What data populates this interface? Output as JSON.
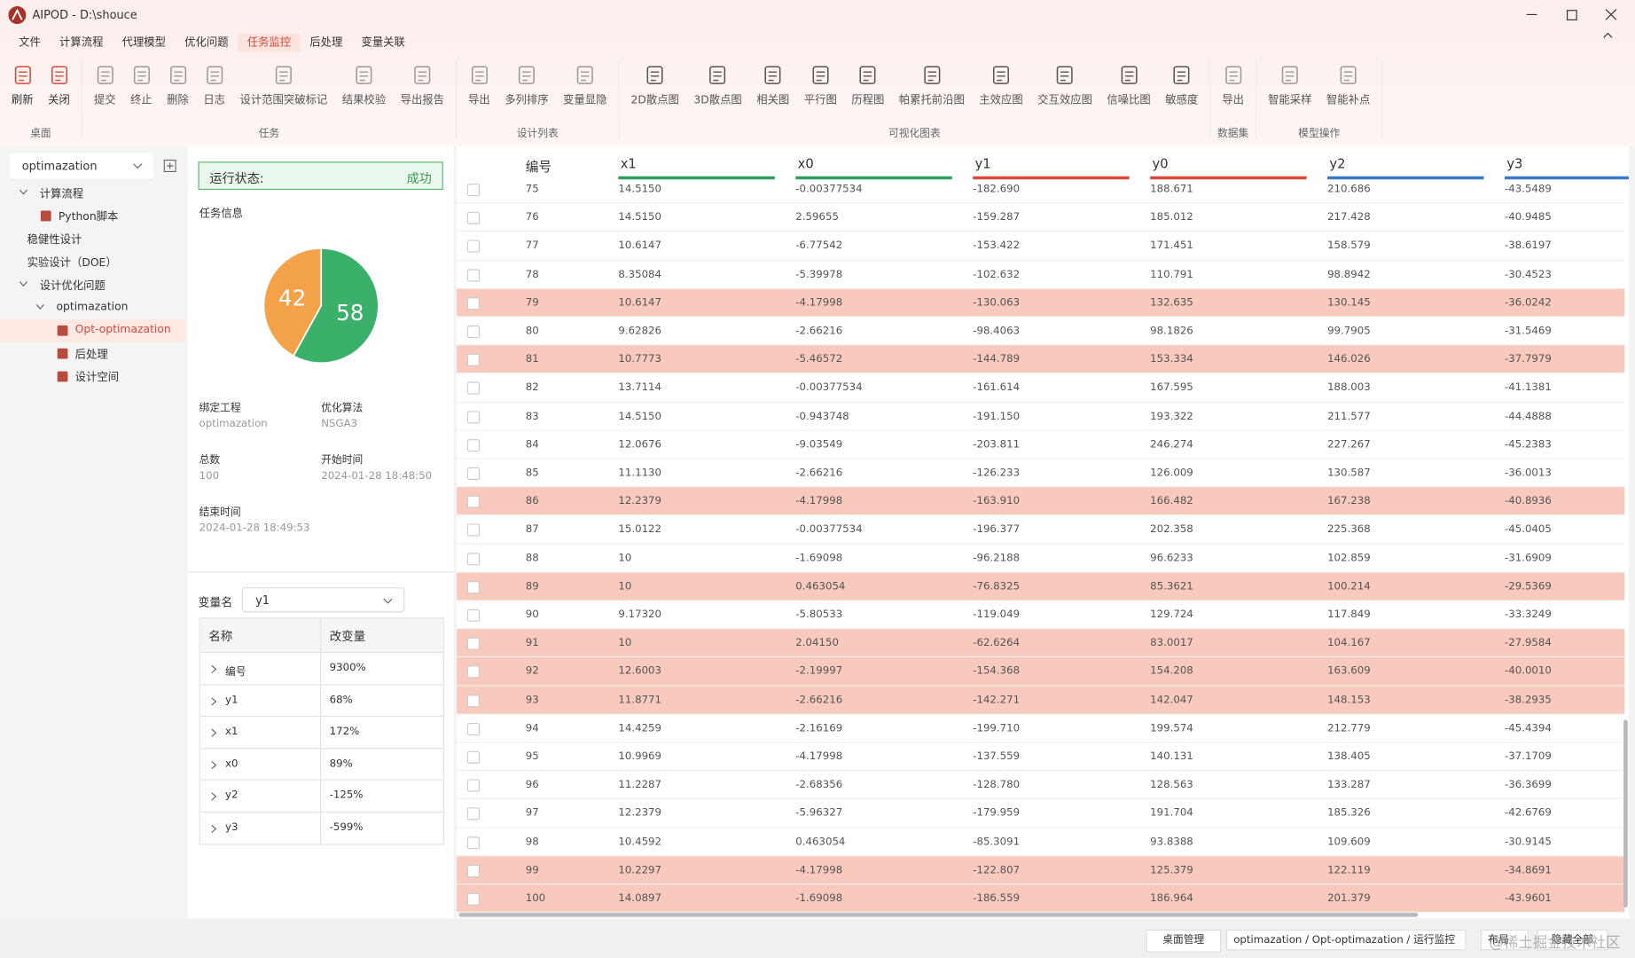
{
  "window": {
    "title": "AIPOD - D:\\shouce"
  },
  "menu": {
    "items": [
      "文件",
      "计算流程",
      "代理模型",
      "优化问题",
      "任务监控",
      "后处理",
      "变量关联"
    ],
    "active": 4
  },
  "toolbar": {
    "groups": [
      {
        "label": "桌面",
        "buttons": [
          "刷新",
          "关闭"
        ]
      },
      {
        "label": "任务",
        "buttons": [
          "提交",
          "终止",
          "删除",
          "日志",
          "设计范围突破标记",
          "结果校验",
          "导出报告"
        ]
      },
      {
        "label": "设计列表",
        "buttons": [
          "导出",
          "多列排序",
          "变量显隐"
        ]
      },
      {
        "label": "可视化图表",
        "buttons": [
          "2D散点图",
          "3D散点图",
          "相关图",
          "平行图",
          "历程图",
          "帕累托前沿图",
          "主效应图",
          "交互效应图",
          "信噪比图",
          "敏感度"
        ]
      },
      {
        "label": "数据集",
        "buttons": [
          "导出"
        ]
      },
      {
        "label": "模型操作",
        "buttons": [
          "智能采样",
          "智能补点"
        ]
      }
    ]
  },
  "sidebar": {
    "project": "optimazation",
    "tree": [
      {
        "label": "计算流程",
        "children": [
          {
            "label": "Python脚本"
          }
        ]
      },
      {
        "label": "稳健性设计"
      },
      {
        "label": "实验设计（DOE）"
      },
      {
        "label": "设计优化问题",
        "children": [
          {
            "label": "optimazation",
            "children": [
              {
                "label": "Opt-optimazation",
                "active": true
              },
              {
                "label": "后处理"
              },
              {
                "label": "设计空间"
              }
            ]
          }
        ]
      }
    ]
  },
  "status": {
    "label": "运行状态:",
    "value": "成功"
  },
  "task_info": {
    "title": "任务信息",
    "pie": {
      "values": [
        42,
        58
      ],
      "colors": [
        "#f4a24a",
        "#3bb06a"
      ]
    },
    "fields": [
      {
        "label": "绑定工程",
        "value": "optimazation"
      },
      {
        "label": "优化算法",
        "value": "NSGA3"
      },
      {
        "label": "总数",
        "value": "100"
      },
      {
        "label": "开始时间",
        "value": "2024-01-28 18:48:50"
      },
      {
        "label": "结束时间",
        "value": "2024-01-28 18:49:53"
      }
    ]
  },
  "variables": {
    "label": "变量名",
    "selected": "y1",
    "table": {
      "headers": [
        "名称",
        "改变量"
      ],
      "rows": [
        [
          "编号",
          "9300%"
        ],
        [
          "y1",
          "68%"
        ],
        [
          "x1",
          "172%"
        ],
        [
          "x0",
          "89%"
        ],
        [
          "y2",
          "-125%"
        ],
        [
          "y3",
          "-599%"
        ]
      ]
    }
  },
  "results": {
    "columns": [
      {
        "name": "编号"
      },
      {
        "name": "x1",
        "color": "#2e9d5a"
      },
      {
        "name": "x0",
        "color": "#2e9d5a"
      },
      {
        "name": "y1",
        "color": "#d9483b"
      },
      {
        "name": "y0",
        "color": "#d9483b"
      },
      {
        "name": "y2",
        "color": "#3a78c9"
      },
      {
        "name": "y3",
        "color": "#3a78c9"
      }
    ],
    "highlight_color": "#f8c9bd",
    "rows": [
      {
        "cells": [
          "75",
          "14.5150",
          "-0.00377534",
          "-182.690",
          "188.671",
          "210.686",
          "-43.5489"
        ]
      },
      {
        "cells": [
          "76",
          "14.5150",
          "2.59655",
          "-159.287",
          "185.012",
          "217.428",
          "-40.9485"
        ]
      },
      {
        "cells": [
          "77",
          "10.6147",
          "-6.77542",
          "-153.422",
          "171.451",
          "158.579",
          "-38.6197"
        ]
      },
      {
        "cells": [
          "78",
          "8.35084",
          "-5.39978",
          "-102.632",
          "110.791",
          "98.8942",
          "-30.4523"
        ]
      },
      {
        "cells": [
          "79",
          "10.6147",
          "-4.17998",
          "-130.063",
          "132.635",
          "130.145",
          "-36.0242"
        ],
        "highlight": true
      },
      {
        "cells": [
          "80",
          "9.62826",
          "-2.66216",
          "-98.4063",
          "98.1826",
          "99.7905",
          "-31.5469"
        ]
      },
      {
        "cells": [
          "81",
          "10.7773",
          "-5.46572",
          "-144.789",
          "153.334",
          "146.026",
          "-37.7979"
        ],
        "highlight": true
      },
      {
        "cells": [
          "82",
          "13.7114",
          "-0.00377534",
          "-161.614",
          "167.595",
          "188.003",
          "-41.1381"
        ]
      },
      {
        "cells": [
          "83",
          "14.5150",
          "-0.943748",
          "-191.150",
          "193.322",
          "211.577",
          "-44.4888"
        ]
      },
      {
        "cells": [
          "84",
          "12.0676",
          "-9.03549",
          "-203.811",
          "246.274",
          "227.267",
          "-45.2383"
        ]
      },
      {
        "cells": [
          "85",
          "11.1130",
          "-2.66216",
          "-126.233",
          "126.009",
          "130.587",
          "-36.0013"
        ]
      },
      {
        "cells": [
          "86",
          "12.2379",
          "-4.17998",
          "-163.910",
          "166.482",
          "167.238",
          "-40.8936"
        ],
        "highlight": true
      },
      {
        "cells": [
          "87",
          "15.0122",
          "-0.00377534",
          "-196.377",
          "202.358",
          "225.368",
          "-45.0405"
        ]
      },
      {
        "cells": [
          "88",
          "10",
          "-1.69098",
          "-96.2188",
          "96.6233",
          "102.859",
          "-31.6909"
        ]
      },
      {
        "cells": [
          "89",
          "10",
          "0.463054",
          "-76.8325",
          "85.3621",
          "100.214",
          "-29.5369"
        ],
        "highlight": true
      },
      {
        "cells": [
          "90",
          "9.17320",
          "-5.80533",
          "-119.049",
          "129.724",
          "117.849",
          "-33.3249"
        ]
      },
      {
        "cells": [
          "91",
          "10",
          "2.04150",
          "-62.6264",
          "83.0017",
          "104.167",
          "-27.9584"
        ],
        "highlight": true
      },
      {
        "cells": [
          "92",
          "12.6003",
          "-2.19997",
          "-154.368",
          "154.208",
          "163.609",
          "-40.0010"
        ],
        "highlight": true
      },
      {
        "cells": [
          "93",
          "11.8771",
          "-2.66216",
          "-142.271",
          "142.047",
          "148.153",
          "-38.2935"
        ],
        "highlight": true
      },
      {
        "cells": [
          "94",
          "14.4259",
          "-2.16169",
          "-199.710",
          "199.574",
          "212.779",
          "-45.4394"
        ]
      },
      {
        "cells": [
          "95",
          "10.9969",
          "-4.17998",
          "-137.559",
          "140.131",
          "138.405",
          "-37.1709"
        ]
      },
      {
        "cells": [
          "96",
          "11.2287",
          "-2.68356",
          "-128.780",
          "128.563",
          "133.287",
          "-36.3699"
        ]
      },
      {
        "cells": [
          "97",
          "12.2379",
          "-5.96327",
          "-179.959",
          "191.704",
          "185.326",
          "-42.6769"
        ]
      },
      {
        "cells": [
          "98",
          "10.4592",
          "0.463054",
          "-85.3091",
          "93.8388",
          "109.609",
          "-30.9145"
        ]
      },
      {
        "cells": [
          "99",
          "10.2297",
          "-4.17998",
          "-122.807",
          "125.379",
          "122.119",
          "-34.8691"
        ],
        "highlight": true
      },
      {
        "cells": [
          "100",
          "14.0897",
          "-1.69098",
          "-186.559",
          "186.964",
          "201.379",
          "-43.9601"
        ],
        "highlight": true
      }
    ]
  },
  "statusbar": {
    "desk": "桌面管理",
    "path": "optimazation / Opt-optimazation / 运行监控",
    "layout": "布局",
    "hide": "隐藏全部"
  },
  "watermark": "@稀土掘金技术社区"
}
